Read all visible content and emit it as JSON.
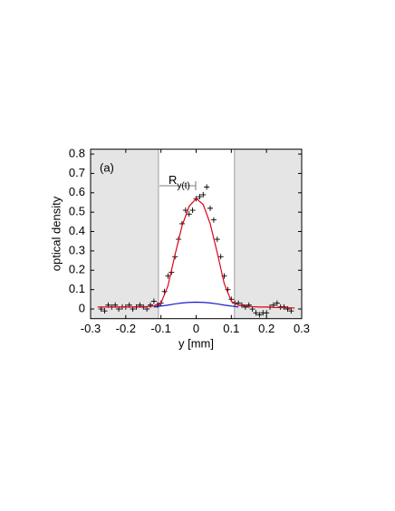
{
  "chart_data": {
    "type": "line",
    "panel_label": "(a)",
    "annotation": {
      "text": "R",
      "sub": "y(t)"
    },
    "xlabel": "y [mm]",
    "ylabel": "optical density",
    "xlim": [
      -0.3,
      0.3
    ],
    "ylim": [
      -0.05,
      0.825
    ],
    "xticks": [
      -0.3,
      -0.2,
      -0.1,
      0,
      0.1,
      0.2,
      0.3
    ],
    "yticks": [
      0,
      0.1,
      0.2,
      0.3,
      0.4,
      0.5,
      0.6,
      0.7,
      0.8
    ],
    "shaded": [
      [
        -0.3,
        -0.107
      ],
      [
        0.109,
        0.3
      ]
    ],
    "shade_color": "#e5e5e5",
    "series": [
      {
        "style": "cross",
        "color": "#000000",
        "x": [
          -0.27,
          -0.26,
          -0.25,
          -0.24,
          -0.23,
          -0.22,
          -0.21,
          -0.2,
          -0.19,
          -0.18,
          -0.17,
          -0.16,
          -0.15,
          -0.14,
          -0.13,
          -0.12,
          -0.11,
          -0.1,
          -0.09,
          -0.08,
          -0.07,
          -0.06,
          -0.05,
          -0.04,
          -0.03,
          -0.02,
          -0.01,
          0,
          0.01,
          0.02,
          0.03,
          0.04,
          0.05,
          0.06,
          0.07,
          0.08,
          0.09,
          0.1,
          0.11,
          0.12,
          0.13,
          0.14,
          0.15,
          0.16,
          0.17,
          0.18,
          0.19,
          0.2,
          0.21,
          0.22,
          0.23,
          0.24,
          0.25,
          0.26,
          0.27
        ],
        "values": [
          0,
          -0.01,
          0.02,
          0.01,
          0.02,
          0,
          0.01,
          0.01,
          0.02,
          0,
          0.01,
          0.02,
          0.01,
          0,
          0.02,
          0.04,
          0.02,
          0.03,
          0.09,
          0.17,
          0.19,
          0.27,
          0.36,
          0.44,
          0.51,
          0.49,
          0.51,
          0.57,
          0.58,
          0.59,
          0.63,
          0.52,
          0.46,
          0.36,
          0.27,
          0.17,
          0.1,
          0.05,
          0.03,
          0.03,
          0.02,
          0.01,
          0.02,
          0,
          -0.02,
          -0.03,
          -0.02,
          -0.02,
          0.01,
          0.02,
          0.03,
          0.01,
          0.01,
          0,
          -0.01
        ]
      },
      {
        "style": "line",
        "color": "#e0001b",
        "x": [
          -0.28,
          -0.26,
          -0.24,
          -0.22,
          -0.2,
          -0.18,
          -0.16,
          -0.14,
          -0.12,
          -0.1,
          -0.08,
          -0.06,
          -0.04,
          -0.02,
          0,
          0.02,
          0.04,
          0.06,
          0.08,
          0.1,
          0.12,
          0.14,
          0.16,
          0.18,
          0.2,
          0.22,
          0.24,
          0.26,
          0.28
        ],
        "values": [
          0.01,
          0.01,
          0.01,
          0.01,
          0.01,
          0.01,
          0.012,
          0.012,
          0.015,
          0.03,
          0.12,
          0.28,
          0.43,
          0.53,
          0.57,
          0.54,
          0.44,
          0.29,
          0.13,
          0.04,
          0.02,
          0.015,
          0.012,
          0.01,
          0.01,
          0.008,
          0.007,
          0.006,
          0.005
        ]
      },
      {
        "style": "line",
        "color": "#1a1ad0",
        "x": [
          -0.12,
          -0.1,
          -0.08,
          -0.06,
          -0.04,
          -0.02,
          0,
          0.02,
          0.04,
          0.06,
          0.08,
          0.1,
          0.12
        ],
        "values": [
          0.01,
          0.015,
          0.02,
          0.026,
          0.031,
          0.034,
          0.035,
          0.034,
          0.031,
          0.026,
          0.02,
          0.015,
          0.01
        ]
      }
    ]
  }
}
